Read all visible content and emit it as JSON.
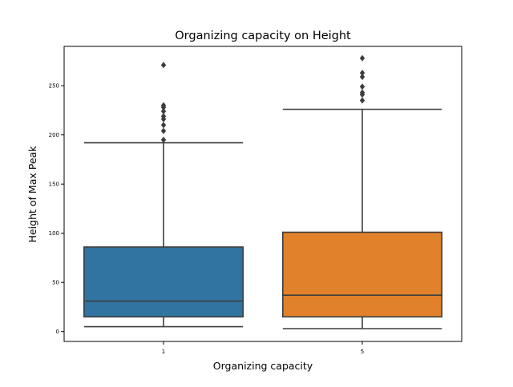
{
  "chart_data": {
    "type": "boxplot",
    "title": "Organizing capacity on Height",
    "xlabel": "Organizing capacity",
    "ylabel": "Height of Max Peak",
    "categories": [
      "1",
      "5"
    ],
    "ylim": [
      -10,
      290
    ],
    "yticks": [
      0,
      50,
      100,
      150,
      200,
      250
    ],
    "grid": false,
    "series": [
      {
        "name": "1",
        "color": "#3274a1",
        "whisker_low": 5,
        "q1": 15,
        "median": 31,
        "q3": 86,
        "whisker_high": 192,
        "outliers": [
          195,
          204,
          210,
          216,
          219,
          224,
          228,
          230,
          271
        ]
      },
      {
        "name": "5",
        "color": "#e1812c",
        "whisker_low": 3,
        "q1": 15,
        "median": 37,
        "q3": 101,
        "whisker_high": 226,
        "outliers": [
          235,
          241,
          243,
          249,
          259,
          263,
          278
        ]
      }
    ]
  },
  "colors": {
    "line": "#3d3d3d",
    "axes": "#000000"
  }
}
